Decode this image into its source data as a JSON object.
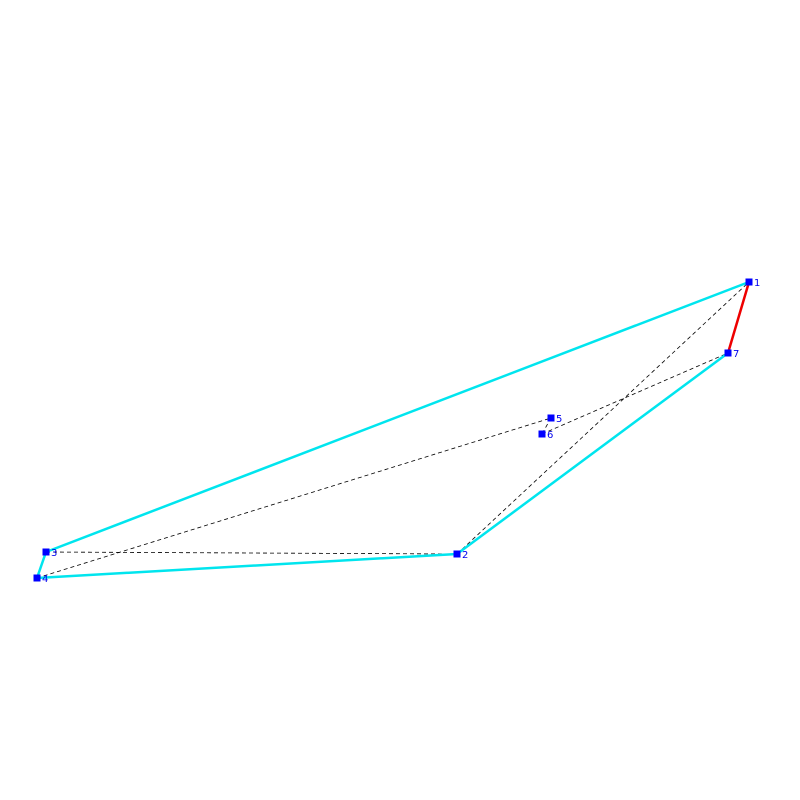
{
  "colors": {
    "background": "#ffffff",
    "hull_edge": "#00e5ee",
    "highlight_edge": "#ee0000",
    "dashed_edge": "#000000",
    "point_fill": "#0000ff",
    "label": "#0000ee"
  },
  "points": [
    {
      "id": "1",
      "label": "1"
    },
    {
      "id": "2",
      "label": "2"
    },
    {
      "id": "3",
      "label": "3"
    },
    {
      "id": "4",
      "label": "4"
    },
    {
      "id": "5",
      "label": "5"
    },
    {
      "id": "6",
      "label": "6"
    },
    {
      "id": "7",
      "label": "7"
    }
  ],
  "hull_edges": [
    [
      "1",
      "3"
    ],
    [
      "3",
      "4"
    ],
    [
      "4",
      "2"
    ],
    [
      "2",
      "7"
    ]
  ],
  "highlight_edges": [
    [
      "7",
      "1"
    ]
  ],
  "dashed_edges": [
    [
      "3",
      "2"
    ],
    [
      "4",
      "5"
    ],
    [
      "5",
      "6"
    ],
    [
      "6",
      "7"
    ],
    [
      "2",
      "1"
    ]
  ]
}
